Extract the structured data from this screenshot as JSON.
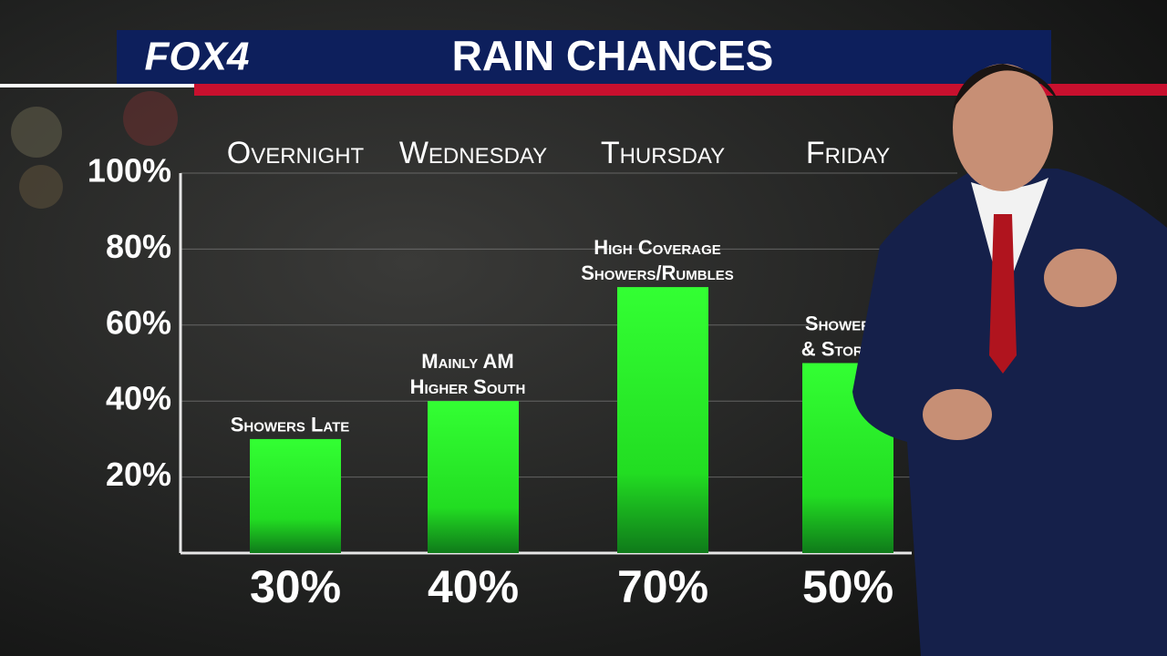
{
  "logo": "FOX4",
  "chart_data": {
    "type": "bar",
    "title": "RAIN CHANCES",
    "categories": [
      "Overnight",
      "Wednesday",
      "Thursday",
      "Friday"
    ],
    "values": [
      30,
      40,
      70,
      50
    ],
    "value_labels": [
      "30%",
      "40%",
      "70%",
      "50%"
    ],
    "notes": [
      [
        "Showers Late"
      ],
      [
        "Mainly AM",
        "Higher South"
      ],
      [
        "High Coverage",
        "Showers/Rumbles"
      ],
      [
        "Showers",
        "& Storms"
      ]
    ],
    "color": "#22ee22",
    "ylim": [
      0,
      100
    ],
    "yticks": [
      {
        "value": 20,
        "label": "20%"
      },
      {
        "value": 40,
        "label": "40%"
      },
      {
        "value": 60,
        "label": "60%"
      },
      {
        "value": 80,
        "label": "80%"
      },
      {
        "value": 100,
        "label": "100%"
      }
    ],
    "grid": true
  }
}
